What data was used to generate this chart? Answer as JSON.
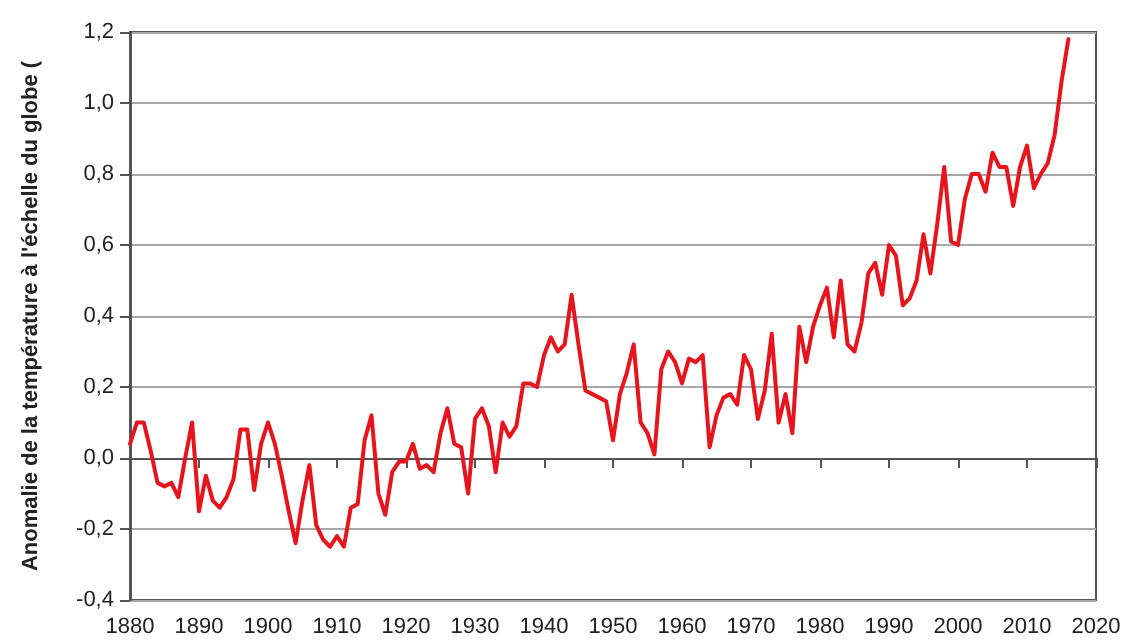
{
  "chart_data": {
    "type": "line",
    "ylabel": "Anomalie de la température à l'échelle du globe (",
    "x": [
      1880,
      1881,
      1882,
      1883,
      1884,
      1885,
      1886,
      1887,
      1888,
      1889,
      1890,
      1891,
      1892,
      1893,
      1894,
      1895,
      1896,
      1897,
      1898,
      1899,
      1900,
      1901,
      1902,
      1903,
      1904,
      1905,
      1906,
      1907,
      1908,
      1909,
      1910,
      1911,
      1912,
      1913,
      1914,
      1915,
      1916,
      1917,
      1918,
      1919,
      1920,
      1921,
      1922,
      1923,
      1924,
      1925,
      1926,
      1927,
      1928,
      1929,
      1930,
      1931,
      1932,
      1933,
      1934,
      1935,
      1936,
      1937,
      1938,
      1939,
      1940,
      1941,
      1942,
      1943,
      1944,
      1945,
      1946,
      1947,
      1948,
      1949,
      1950,
      1951,
      1952,
      1953,
      1954,
      1955,
      1956,
      1957,
      1958,
      1959,
      1960,
      1961,
      1962,
      1963,
      1964,
      1965,
      1966,
      1967,
      1968,
      1969,
      1970,
      1971,
      1972,
      1973,
      1974,
      1975,
      1976,
      1977,
      1978,
      1979,
      1980,
      1981,
      1982,
      1983,
      1984,
      1985,
      1986,
      1987,
      1988,
      1989,
      1990,
      1991,
      1992,
      1993,
      1994,
      1995,
      1996,
      1997,
      1998,
      1999,
      2000,
      2001,
      2002,
      2003,
      2004,
      2005,
      2006,
      2007,
      2008,
      2009,
      2010,
      2011,
      2012,
      2013,
      2014,
      2015,
      2016
    ],
    "series": [
      {
        "color": "#e8141c",
        "values": [
          0.04,
          0.1,
          0.1,
          0.02,
          -0.07,
          -0.08,
          -0.07,
          -0.11,
          0.0,
          0.1,
          -0.15,
          -0.05,
          -0.12,
          -0.14,
          -0.11,
          -0.06,
          0.08,
          0.08,
          -0.09,
          0.04,
          0.1,
          0.04,
          -0.05,
          -0.15,
          -0.24,
          -0.12,
          -0.02,
          -0.19,
          -0.23,
          -0.25,
          -0.22,
          -0.25,
          -0.14,
          -0.13,
          0.05,
          0.12,
          -0.1,
          -0.16,
          -0.04,
          -0.01,
          -0.01,
          0.04,
          -0.03,
          -0.02,
          -0.04,
          0.07,
          0.14,
          0.04,
          0.03,
          -0.1,
          0.11,
          0.14,
          0.09,
          -0.04,
          0.1,
          0.06,
          0.09,
          0.21,
          0.21,
          0.2,
          0.29,
          0.34,
          0.3,
          0.32,
          0.46,
          0.32,
          0.19,
          0.18,
          0.17,
          0.16,
          0.05,
          0.18,
          0.24,
          0.32,
          0.1,
          0.07,
          0.01,
          0.25,
          0.3,
          0.27,
          0.21,
          0.28,
          0.27,
          0.29,
          0.03,
          0.12,
          0.17,
          0.18,
          0.15,
          0.29,
          0.25,
          0.11,
          0.19,
          0.35,
          0.1,
          0.18,
          0.07,
          0.37,
          0.27,
          0.37,
          0.43,
          0.48,
          0.34,
          0.5,
          0.32,
          0.3,
          0.38,
          0.52,
          0.55,
          0.46,
          0.6,
          0.57,
          0.43,
          0.45,
          0.5,
          0.63,
          0.52,
          0.66,
          0.82,
          0.61,
          0.6,
          0.73,
          0.8,
          0.8,
          0.75,
          0.86,
          0.82,
          0.82,
          0.71,
          0.82,
          0.88,
          0.76,
          0.8,
          0.83,
          0.91,
          1.06,
          1.18
        ]
      }
    ],
    "xlim": [
      1880,
      2020
    ],
    "xticks": [
      1880,
      1890,
      1900,
      1910,
      1920,
      1930,
      1940,
      1950,
      1960,
      1970,
      1980,
      1990,
      2000,
      2010,
      2020
    ],
    "ylim": [
      -0.4,
      1.2
    ],
    "yticks": [
      {
        "value": -0.4,
        "label": "-0,4"
      },
      {
        "value": -0.2,
        "label": "-0,2"
      },
      {
        "value": 0,
        "label": "0,0"
      },
      {
        "value": 0.2,
        "label": "0,2"
      },
      {
        "value": 0.4,
        "label": "0,4"
      },
      {
        "value": 0.6,
        "label": "0,6"
      },
      {
        "value": 0.8,
        "label": "0,8"
      },
      {
        "value": 1.0,
        "label": "1,0"
      },
      {
        "value": 1.2,
        "label": "1,2"
      }
    ],
    "grid": "y",
    "marker": "none",
    "line_style": "solid"
  }
}
